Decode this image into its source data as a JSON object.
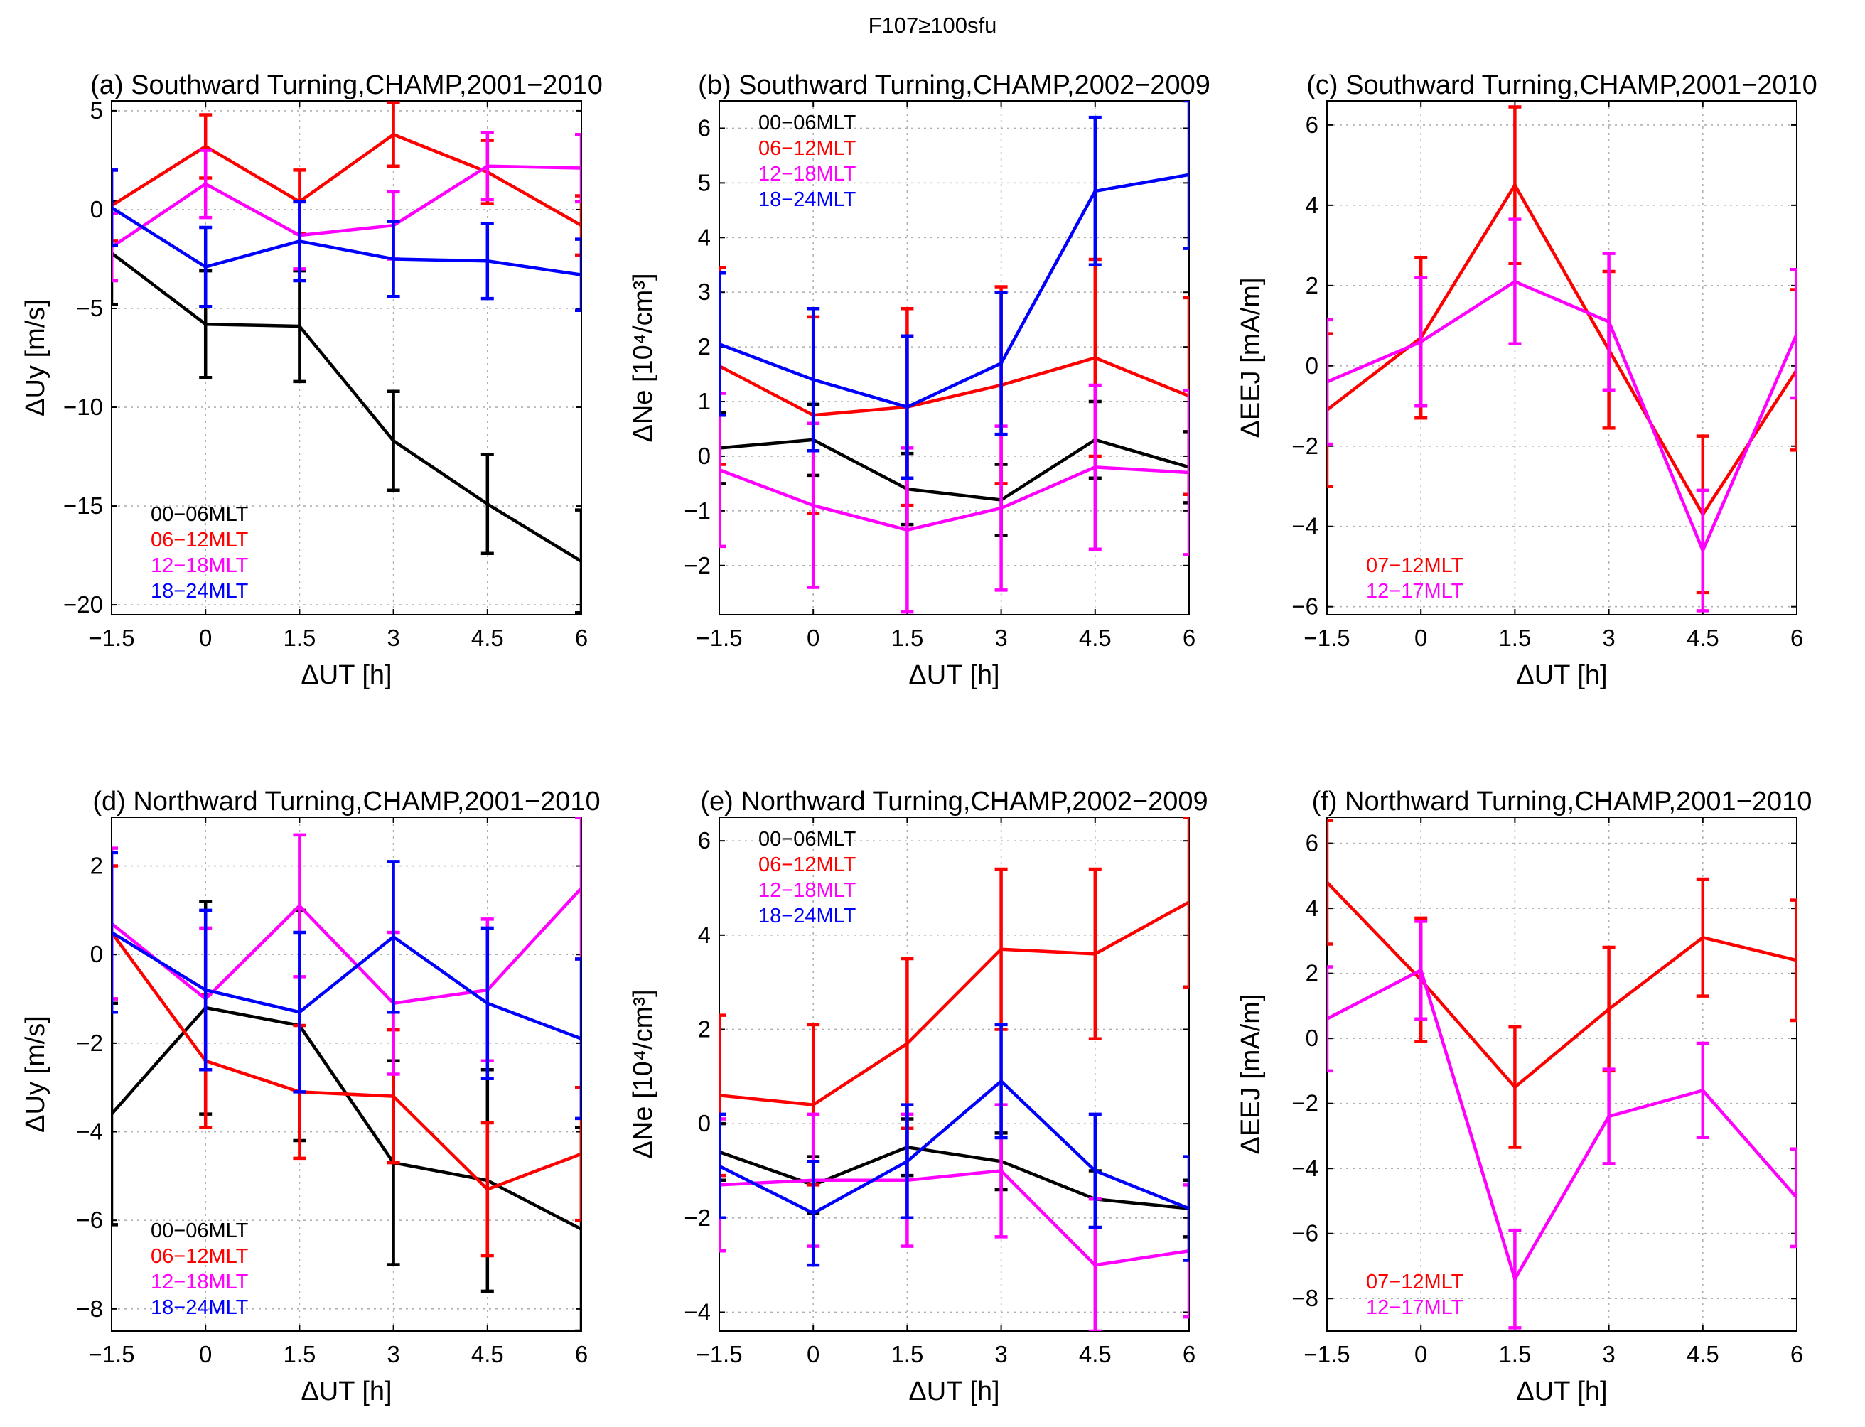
{
  "figure_title": "F107≥100sfu",
  "colors": {
    "00-06MLT": "#000000",
    "06-12MLT": "#ff0000",
    "12-18MLT": "#ff00ff",
    "18-24MLT": "#0000ff",
    "07-12MLT": "#ff0000",
    "12-17MLT": "#ff00ff"
  },
  "chart_data": [
    {
      "id": "a",
      "type": "line",
      "title": "(a) Southward Turning,CHAMP,2001−2010",
      "xlabel": "ΔUT [h]",
      "ylabel": "ΔUy [m/s]",
      "x": [
        -1.5,
        0,
        1.5,
        3,
        4.5,
        6
      ],
      "xticks": [
        -1.5,
        0,
        1.5,
        3,
        4.5,
        6
      ],
      "xtick_labels": [
        "−1.5",
        "0",
        "1.5",
        "3",
        "4.5",
        "6"
      ],
      "xlim": [
        -1.5,
        6
      ],
      "ylim": [
        -20.5,
        5.5
      ],
      "yticks": [
        5,
        0,
        -5,
        -10,
        -15,
        -20
      ],
      "ytick_labels": [
        "5",
        "0",
        "−5",
        "−10",
        "−15",
        "−20"
      ],
      "legend_position": "lower-left",
      "series": [
        {
          "name": "00−06MLT",
          "color": "#000000",
          "values": [
            -2.2,
            -5.8,
            -5.9,
            -11.7,
            -14.9,
            -17.8
          ],
          "errors": [
            2.6,
            2.7,
            2.8,
            2.5,
            2.5,
            2.6
          ]
        },
        {
          "name": "06−12MLT",
          "color": "#ff0000",
          "values": [
            0.2,
            3.2,
            0.4,
            3.8,
            1.9,
            -0.8
          ],
          "errors": [
            1.8,
            1.6,
            1.6,
            1.6,
            1.6,
            1.5
          ]
        },
        {
          "name": "12−18MLT",
          "color": "#ff00ff",
          "values": [
            -1.9,
            1.3,
            -1.3,
            -0.8,
            2.2,
            2.1
          ],
          "errors": [
            1.7,
            1.7,
            1.7,
            1.7,
            1.7,
            1.7
          ]
        },
        {
          "name": "18−24MLT",
          "color": "#0000ff",
          "values": [
            0.1,
            -2.9,
            -1.6,
            -2.5,
            -2.6,
            -3.3
          ],
          "errors": [
            1.9,
            2.0,
            2.0,
            1.9,
            1.9,
            1.8
          ]
        }
      ]
    },
    {
      "id": "b",
      "type": "line",
      "title": "(b) Southward Turning,CHAMP,2002−2009",
      "xlabel": "ΔUT [h]",
      "ylabel": "ΔNe [10⁴/cm³]",
      "x": [
        -1.5,
        0,
        1.5,
        3,
        4.5,
        6
      ],
      "xticks": [
        -1.5,
        0,
        1.5,
        3,
        4.5,
        6
      ],
      "xtick_labels": [
        "−1.5",
        "0",
        "1.5",
        "3",
        "4.5",
        "6"
      ],
      "xlim": [
        -1.5,
        6
      ],
      "ylim": [
        -2.9,
        6.5
      ],
      "yticks": [
        6,
        5,
        4,
        3,
        2,
        1,
        0,
        -1,
        -2
      ],
      "ytick_labels": [
        "6",
        "5",
        "4",
        "3",
        "2",
        "1",
        "0",
        "−1",
        "−2"
      ],
      "legend_position": "top-left",
      "series": [
        {
          "name": "00−06MLT",
          "color": "#000000",
          "values": [
            0.15,
            0.3,
            -0.6,
            -0.8,
            0.3,
            -0.2
          ],
          "errors": [
            0.65,
            0.65,
            0.65,
            0.65,
            0.7,
            0.65
          ]
        },
        {
          "name": "06−12MLT",
          "color": "#ff0000",
          "values": [
            1.65,
            0.75,
            0.9,
            1.3,
            1.8,
            1.1
          ],
          "errors": [
            1.8,
            1.8,
            1.8,
            1.8,
            1.8,
            1.8
          ]
        },
        {
          "name": "12−18MLT",
          "color": "#ff00ff",
          "values": [
            -0.25,
            -0.9,
            -1.35,
            -0.95,
            -0.2,
            -0.3
          ],
          "errors": [
            1.4,
            1.5,
            1.5,
            1.5,
            1.5,
            1.5
          ]
        },
        {
          "name": "18−24MLT",
          "color": "#0000ff",
          "values": [
            2.05,
            1.4,
            0.9,
            1.7,
            4.85,
            5.15
          ],
          "errors": [
            1.3,
            1.3,
            1.3,
            1.3,
            1.35,
            1.35
          ]
        }
      ]
    },
    {
      "id": "c",
      "type": "line",
      "title": "(c) Southward Turning,CHAMP,2001−2010",
      "xlabel": "ΔUT [h]",
      "ylabel": "ΔEEJ [mA/m]",
      "x": [
        -1.5,
        0,
        1.5,
        3,
        4.5,
        6
      ],
      "xticks": [
        -1.5,
        0,
        1.5,
        3,
        4.5,
        6
      ],
      "xtick_labels": [
        "−1.5",
        "0",
        "1.5",
        "3",
        "4.5",
        "6"
      ],
      "xlim": [
        -1.5,
        6
      ],
      "ylim": [
        -6.2,
        6.6
      ],
      "yticks": [
        6,
        4,
        2,
        0,
        -2,
        -4,
        -6
      ],
      "ytick_labels": [
        "6",
        "4",
        "2",
        "0",
        "−2",
        "−4",
        "−6"
      ],
      "legend_position": "lower-left",
      "series": [
        {
          "name": "07−12MLT",
          "color": "#ff0000",
          "values": [
            -1.1,
            0.7,
            4.5,
            0.4,
            -3.7,
            -0.1
          ],
          "errors": [
            1.9,
            2.0,
            1.95,
            1.95,
            1.95,
            2.0
          ]
        },
        {
          "name": "12−17MLT",
          "color": "#ff00ff",
          "values": [
            -0.4,
            0.6,
            2.1,
            1.1,
            -4.6,
            0.8
          ],
          "errors": [
            1.55,
            1.6,
            1.55,
            1.7,
            1.5,
            1.6
          ]
        }
      ]
    },
    {
      "id": "d",
      "type": "line",
      "title": "(d) Northward Turning,CHAMP,2001−2010",
      "xlabel": "ΔUT [h]",
      "ylabel": "ΔUy [m/s]",
      "x": [
        -1.5,
        0,
        1.5,
        3,
        4.5,
        6
      ],
      "xticks": [
        -1.5,
        0,
        1.5,
        3,
        4.5,
        6
      ],
      "xtick_labels": [
        "−1.5",
        "0",
        "1.5",
        "3",
        "4.5",
        "6"
      ],
      "xlim": [
        -1.5,
        6
      ],
      "ylim": [
        -8.5,
        3.1
      ],
      "yticks": [
        2,
        0,
        -2,
        -4,
        -6,
        -8
      ],
      "ytick_labels": [
        "2",
        "0",
        "−2",
        "−4",
        "−6",
        "−8"
      ],
      "legend_position": "lower-left",
      "series": [
        {
          "name": "00−06MLT",
          "color": "#000000",
          "values": [
            -3.6,
            -1.2,
            -1.6,
            -4.7,
            -5.1,
            -6.2
          ],
          "errors": [
            2.5,
            2.4,
            2.6,
            2.3,
            2.5,
            2.3
          ]
        },
        {
          "name": "06−12MLT",
          "color": "#ff0000",
          "values": [
            0.5,
            -2.4,
            -3.1,
            -3.2,
            -5.3,
            -4.5
          ],
          "errors": [
            1.5,
            1.5,
            1.5,
            1.5,
            1.5,
            1.5
          ]
        },
        {
          "name": "12−18MLT",
          "color": "#ff00ff",
          "values": [
            0.7,
            -1.0,
            1.1,
            -1.1,
            -0.8,
            1.5
          ],
          "errors": [
            1.7,
            1.6,
            1.6,
            1.6,
            1.6,
            1.6
          ]
        },
        {
          "name": "18−24MLT",
          "color": "#0000ff",
          "values": [
            0.5,
            -0.8,
            -1.3,
            0.4,
            -1.1,
            -1.9
          ],
          "errors": [
            1.8,
            1.8,
            1.8,
            1.7,
            1.7,
            1.8
          ]
        }
      ]
    },
    {
      "id": "e",
      "type": "line",
      "title": "(e) Northward Turning,CHAMP,2002−2009",
      "xlabel": "ΔUT [h]",
      "ylabel": "ΔNe [10⁴/cm³]",
      "x": [
        -1.5,
        0,
        1.5,
        3,
        4.5,
        6
      ],
      "xticks": [
        -1.5,
        0,
        1.5,
        3,
        4.5,
        6
      ],
      "xtick_labels": [
        "−1.5",
        "0",
        "1.5",
        "3",
        "4.5",
        "6"
      ],
      "xlim": [
        -1.5,
        6
      ],
      "ylim": [
        -4.4,
        6.5
      ],
      "yticks": [
        6,
        4,
        2,
        0,
        -2,
        -4
      ],
      "ytick_labels": [
        "6",
        "4",
        "2",
        "0",
        "−2",
        "−4"
      ],
      "legend_position": "top-left",
      "series": [
        {
          "name": "00−06MLT",
          "color": "#000000",
          "values": [
            -0.6,
            -1.3,
            -0.5,
            -0.8,
            -1.6,
            -1.8
          ],
          "errors": [
            0.6,
            0.6,
            0.6,
            0.6,
            0.6,
            0.6
          ]
        },
        {
          "name": "06−12MLT",
          "color": "#ff0000",
          "values": [
            0.6,
            0.4,
            1.7,
            3.7,
            3.6,
            4.7
          ],
          "errors": [
            1.7,
            1.7,
            1.8,
            1.7,
            1.8,
            1.8
          ]
        },
        {
          "name": "12−18MLT",
          "color": "#ff00ff",
          "values": [
            -1.3,
            -1.2,
            -1.2,
            -1.0,
            -3.0,
            -2.7
          ],
          "errors": [
            1.4,
            1.4,
            1.4,
            1.4,
            1.4,
            1.4
          ]
        },
        {
          "name": "18−24MLT",
          "color": "#0000ff",
          "values": [
            -0.9,
            -1.9,
            -0.8,
            0.9,
            -1.0,
            -1.8
          ],
          "errors": [
            1.1,
            1.1,
            1.2,
            1.2,
            1.2,
            1.1
          ]
        }
      ]
    },
    {
      "id": "f",
      "type": "line",
      "title": "(f) Northward Turning,CHAMP,2001−2010",
      "xlabel": "ΔUT [h]",
      "ylabel": "ΔEEJ [mA/m]",
      "x": [
        -1.5,
        0,
        1.5,
        3,
        4.5,
        6
      ],
      "xticks": [
        -1.5,
        0,
        1.5,
        3,
        4.5,
        6
      ],
      "xtick_labels": [
        "−1.5",
        "0",
        "1.5",
        "3",
        "4.5",
        "6"
      ],
      "xlim": [
        -1.5,
        6
      ],
      "ylim": [
        -9,
        6.8
      ],
      "yticks": [
        6,
        4,
        2,
        0,
        -2,
        -4,
        -6,
        -8
      ],
      "ytick_labels": [
        "6",
        "4",
        "2",
        "0",
        "−2",
        "−4",
        "−6",
        "−8"
      ],
      "legend_position": "lower-left",
      "series": [
        {
          "name": "07−12MLT",
          "color": "#ff0000",
          "values": [
            4.8,
            1.8,
            -1.5,
            0.9,
            3.1,
            2.4
          ],
          "errors": [
            1.9,
            1.9,
            1.85,
            1.9,
            1.8,
            1.85
          ]
        },
        {
          "name": "12−17MLT",
          "color": "#ff00ff",
          "values": [
            0.6,
            2.1,
            -7.4,
            -2.4,
            -1.6,
            -4.9
          ],
          "errors": [
            1.6,
            1.5,
            1.5,
            1.45,
            1.45,
            1.5
          ]
        }
      ]
    }
  ]
}
